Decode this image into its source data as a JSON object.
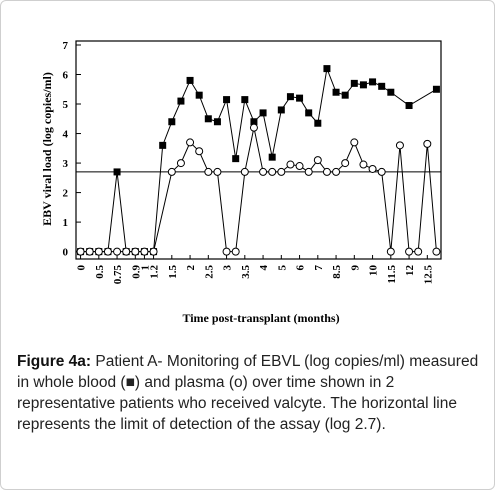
{
  "chart_data": {
    "type": "line",
    "ylabel": "EBV viral load (log copies/ml)",
    "xlabel": "Time post-transplant (months)",
    "xlim": [
      -0.5,
      39.5
    ],
    "ylim": [
      -0.25,
      7
    ],
    "yticks": [
      0,
      1,
      2,
      3,
      4,
      5,
      6,
      7
    ],
    "xticks": [
      {
        "value": 0,
        "label": "0"
      },
      {
        "value": 2,
        "label": "0.5"
      },
      {
        "value": 4,
        "label": "0.75"
      },
      {
        "value": 6,
        "label": "0.9"
      },
      {
        "value": 7,
        "label": "1"
      },
      {
        "value": 8,
        "label": "1.2"
      },
      {
        "value": 10,
        "label": "1.5"
      },
      {
        "value": 12,
        "label": "2"
      },
      {
        "value": 14,
        "label": "2.5"
      },
      {
        "value": 16,
        "label": "3"
      },
      {
        "value": 18,
        "label": "3.5"
      },
      {
        "value": 20,
        "label": "4"
      },
      {
        "value": 22,
        "label": "5"
      },
      {
        "value": 24,
        "label": "6"
      },
      {
        "value": 26,
        "label": "7"
      },
      {
        "value": 28,
        "label": "8.5"
      },
      {
        "value": 30,
        "label": "9"
      },
      {
        "value": 32,
        "label": "10"
      },
      {
        "value": 34,
        "label": "11.5"
      },
      {
        "value": 36,
        "label": "12"
      },
      {
        "value": 38,
        "label": "12.5"
      }
    ],
    "reference_line": 2.7,
    "series": [
      {
        "name": "whole blood",
        "marker": "square",
        "color": "#000000",
        "x": [
          0,
          1,
          2,
          3,
          4,
          5,
          6,
          7,
          8,
          9,
          10,
          11,
          12,
          13,
          14,
          15,
          16,
          17,
          18,
          19,
          20,
          21,
          22,
          23,
          24,
          25,
          26,
          27,
          28,
          29,
          30,
          31,
          32,
          33,
          34,
          36,
          39
        ],
        "values": [
          0,
          0,
          0,
          0,
          2.7,
          0,
          0,
          0,
          0,
          3.6,
          4.4,
          5.1,
          5.8,
          5.3,
          4.5,
          4.4,
          5.15,
          3.15,
          5.15,
          4.4,
          4.7,
          3.2,
          4.8,
          5.25,
          5.2,
          4.7,
          4.35,
          6.2,
          5.4,
          5.3,
          5.7,
          5.65,
          5.75,
          5.6,
          5.4,
          4.95,
          5.5
        ]
      },
      {
        "name": "plasma",
        "marker": "circle",
        "color": "#000000",
        "x": [
          0,
          1,
          2,
          3,
          4,
          5,
          6,
          7,
          8,
          10,
          11,
          12,
          13,
          14,
          15,
          16,
          17,
          18,
          19,
          20,
          21,
          22,
          23,
          24,
          25,
          26,
          27,
          28,
          29,
          30,
          31,
          32,
          33,
          34,
          35,
          36,
          37,
          38,
          39
        ],
        "values": [
          0,
          0,
          0,
          0,
          0,
          0,
          0,
          0,
          0,
          2.7,
          3.0,
          3.7,
          3.4,
          2.7,
          2.7,
          0,
          0,
          2.7,
          4.2,
          2.7,
          2.7,
          2.7,
          2.95,
          2.9,
          2.7,
          3.1,
          2.7,
          2.7,
          3.0,
          3.7,
          2.95,
          2.8,
          2.7,
          0,
          3.6,
          0,
          0,
          3.65,
          0
        ]
      }
    ]
  },
  "caption": {
    "label": "Figure 4a:",
    "text": "Patient A- Monitoring of EBVL (log copies/ml) measured in whole blood (■) and plasma (o) over time shown in 2 representative patients who received valcyte. The horizontal line represents the limit of detection of the assay (log 2.7)."
  }
}
